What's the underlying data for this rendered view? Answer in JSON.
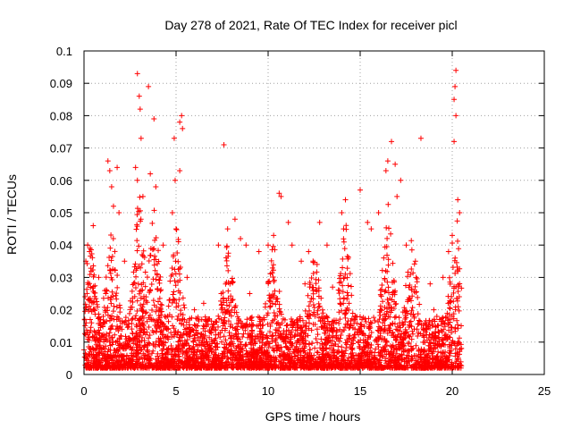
{
  "chart_data": {
    "type": "scatter",
    "title": "Day 278 of 2021, Rate Of TEC Index for receiver picl",
    "xlabel": "GPS time / hours",
    "ylabel": "ROTI / TECUs",
    "xlim": [
      0,
      25
    ],
    "ylim": [
      0,
      0.1
    ],
    "xticks": [
      "0",
      "5",
      "10",
      "15",
      "20",
      "25"
    ],
    "yticks": [
      "0",
      "0.01",
      "0.02",
      "0.03",
      "0.04",
      "0.05",
      "0.06",
      "0.07",
      "0.08",
      "0.09",
      "0.1"
    ],
    "grid": true,
    "marker": "plus",
    "color": "#ff0000",
    "x_data_range": [
      0,
      20.5
    ],
    "series": [
      {
        "points": [
          [
            2.9,
            0.093
          ],
          [
            3.0,
            0.086
          ],
          [
            3.05,
            0.082
          ],
          [
            3.1,
            0.073
          ],
          [
            3.5,
            0.089
          ],
          [
            3.8,
            0.079
          ],
          [
            2.8,
            0.064
          ],
          [
            2.9,
            0.06
          ],
          [
            3.2,
            0.055
          ],
          [
            3.6,
            0.062
          ],
          [
            3.9,
            0.058
          ],
          [
            1.3,
            0.066
          ],
          [
            1.4,
            0.063
          ],
          [
            1.5,
            0.058
          ],
          [
            1.8,
            0.064
          ],
          [
            1.6,
            0.052
          ],
          [
            1.9,
            0.05
          ],
          [
            0.2,
            0.04
          ],
          [
            0.3,
            0.038
          ],
          [
            0.5,
            0.046
          ],
          [
            0.1,
            0.035
          ],
          [
            4.9,
            0.073
          ],
          [
            5.2,
            0.078
          ],
          [
            5.3,
            0.08
          ],
          [
            5.35,
            0.076
          ],
          [
            5.2,
            0.063
          ],
          [
            4.95,
            0.06
          ],
          [
            4.8,
            0.05
          ],
          [
            5.0,
            0.045
          ],
          [
            7.6,
            0.071
          ],
          [
            7.3,
            0.04
          ],
          [
            7.8,
            0.045
          ],
          [
            8.2,
            0.048
          ],
          [
            8.5,
            0.042
          ],
          [
            8.8,
            0.04
          ],
          [
            9.5,
            0.038
          ],
          [
            10.0,
            0.04
          ],
          [
            10.6,
            0.056
          ],
          [
            10.7,
            0.055
          ],
          [
            11.1,
            0.047
          ],
          [
            11.3,
            0.04
          ],
          [
            12.2,
            0.038
          ],
          [
            12.8,
            0.047
          ],
          [
            13.2,
            0.04
          ],
          [
            14.2,
            0.054
          ],
          [
            14.0,
            0.05
          ],
          [
            14.1,
            0.045
          ],
          [
            15.0,
            0.057
          ],
          [
            15.4,
            0.047
          ],
          [
            15.6,
            0.045
          ],
          [
            16.0,
            0.05
          ],
          [
            16.4,
            0.063
          ],
          [
            16.7,
            0.072
          ],
          [
            16.5,
            0.066
          ],
          [
            16.9,
            0.065
          ],
          [
            17.2,
            0.06
          ],
          [
            17.0,
            0.055
          ],
          [
            18.3,
            0.073
          ],
          [
            17.5,
            0.04
          ],
          [
            18.0,
            0.035
          ],
          [
            20.2,
            0.094
          ],
          [
            20.15,
            0.089
          ],
          [
            20.1,
            0.085
          ],
          [
            20.2,
            0.08
          ],
          [
            20.1,
            0.072
          ],
          [
            20.3,
            0.054
          ],
          [
            20.4,
            0.05
          ],
          [
            20.0,
            0.043
          ],
          [
            19.8,
            0.038
          ],
          [
            19.5,
            0.03
          ],
          [
            6.0,
            0.02
          ],
          [
            6.5,
            0.022
          ],
          [
            9.0,
            0.025
          ],
          [
            12.0,
            0.028
          ],
          [
            13.5,
            0.027
          ],
          [
            19.0,
            0.02
          ],
          [
            0.8,
            0.03
          ],
          [
            2.2,
            0.035
          ],
          [
            4.3,
            0.04
          ],
          [
            5.6,
            0.03
          ],
          [
            11.8,
            0.035
          ],
          [
            18.8,
            0.028
          ]
        ]
      }
    ]
  }
}
